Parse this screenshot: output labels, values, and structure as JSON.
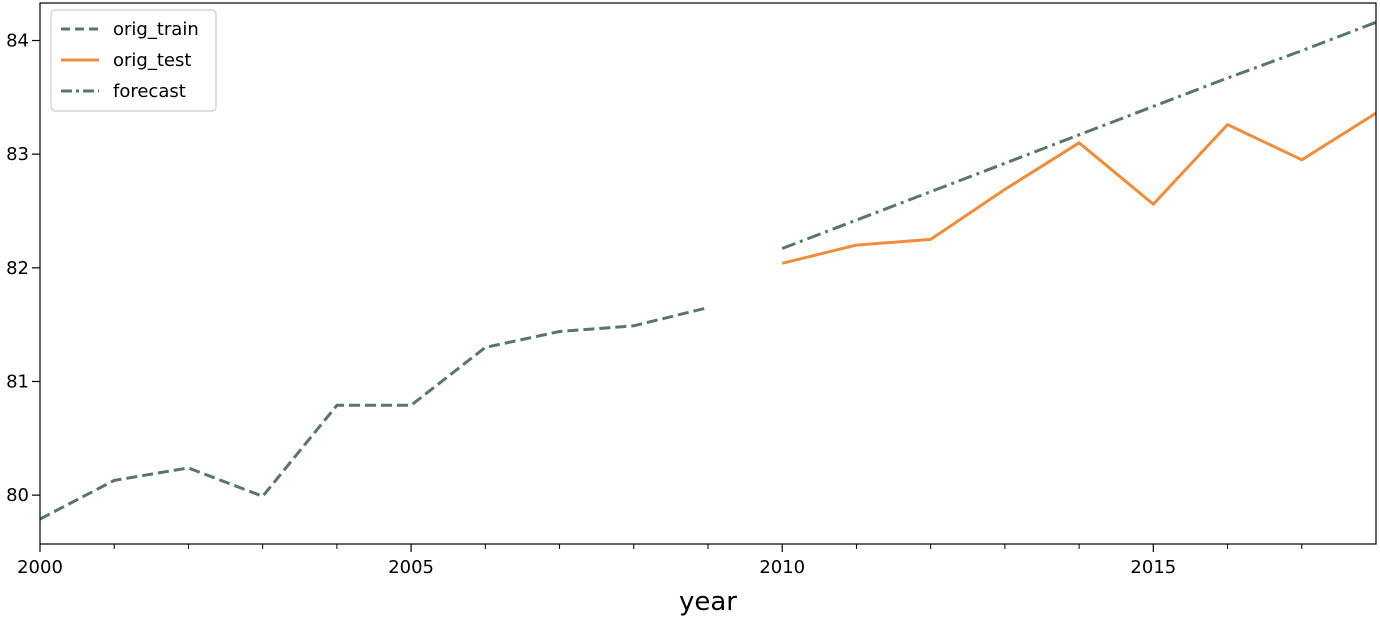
{
  "chart_data": {
    "type": "line",
    "xlabel": "year",
    "ylabel": "",
    "xlim": [
      2000,
      2018
    ],
    "ylim": [
      79.57,
      84.33
    ],
    "x_ticks": [
      2000,
      2005,
      2010,
      2015
    ],
    "y_ticks": [
      80,
      81,
      82,
      83,
      84
    ],
    "grid": false,
    "legend_position": "top-left",
    "series": [
      {
        "name": "orig_train",
        "style": "dashed",
        "color": "#587766",
        "x": [
          2000,
          2001,
          2002,
          2003,
          2004,
          2005,
          2006,
          2007,
          2008,
          2009
        ],
        "y": [
          79.79,
          80.13,
          80.24,
          79.99,
          80.79,
          80.79,
          81.3,
          81.44,
          81.49,
          81.65
        ]
      },
      {
        "name": "orig_test",
        "style": "solid",
        "color": "#ee8e3d",
        "x": [
          2010,
          2011,
          2012,
          2013,
          2014,
          2015,
          2016,
          2017,
          2018
        ],
        "y": [
          82.04,
          82.2,
          82.25,
          82.69,
          83.1,
          82.56,
          83.26,
          82.95,
          83.36
        ]
      },
      {
        "name": "forecast",
        "style": "dashdot",
        "color": "#587766",
        "x": [
          2010,
          2011,
          2012,
          2013,
          2014,
          2015,
          2016,
          2017,
          2018
        ],
        "y": [
          82.17,
          82.42,
          82.67,
          82.92,
          83.17,
          83.42,
          83.67,
          83.91,
          84.16
        ]
      }
    ]
  }
}
